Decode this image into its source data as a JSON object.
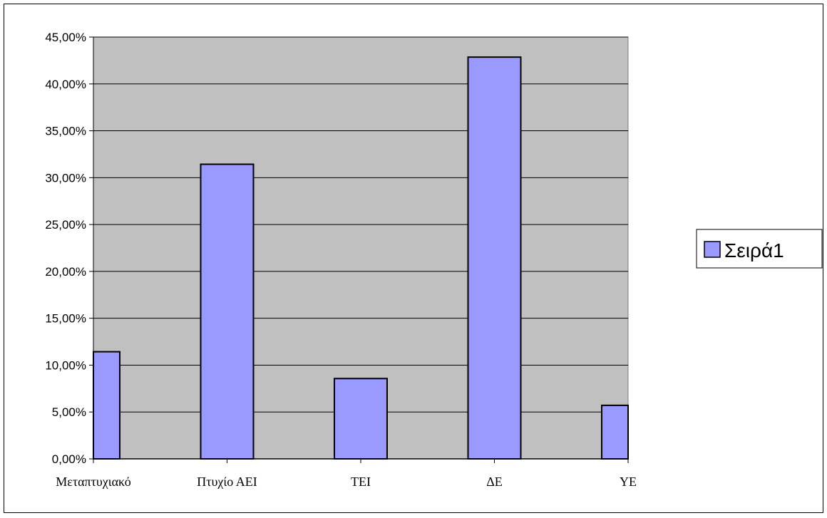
{
  "chart_data": {
    "type": "bar",
    "categories": [
      "Μεταπτυχιακό",
      "Πτυχίο ΑΕΙ",
      "ΤΕΙ",
      "ΔΕ",
      "ΥΕ"
    ],
    "series": [
      {
        "name": "Σειρά1",
        "values": [
          11.43,
          31.43,
          8.57,
          42.86,
          5.71
        ],
        "color": "#9999ff"
      }
    ],
    "y_ticks": [
      "0,00%",
      "5,00%",
      "10,00%",
      "15,00%",
      "20,00%",
      "25,00%",
      "30,00%",
      "35,00%",
      "40,00%",
      "45,00%"
    ],
    "ylim": [
      0,
      45
    ],
    "grid": true,
    "legend_position": "right",
    "plot_background": "#c0c0c0",
    "bar_outline": "#000000"
  }
}
